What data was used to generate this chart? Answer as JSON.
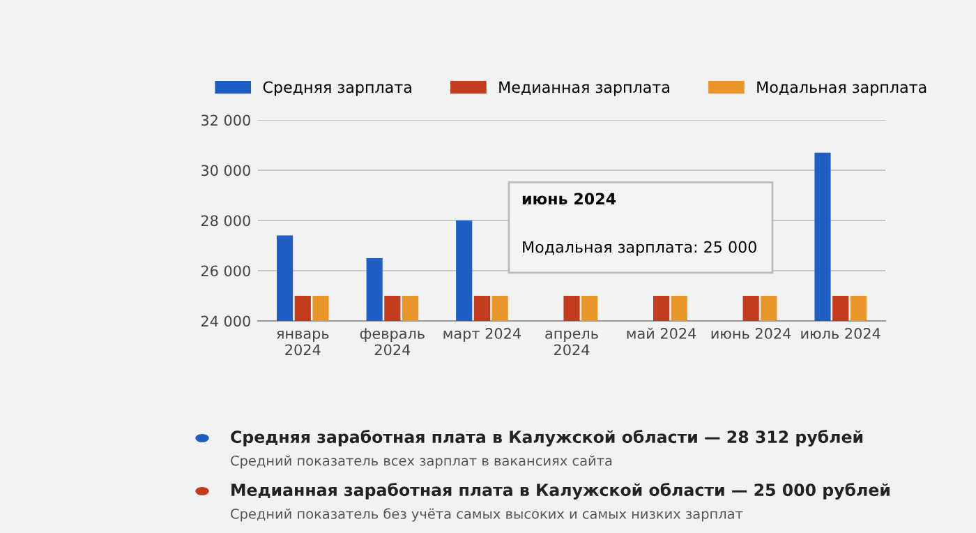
{
  "chart_data": {
    "type": "bar",
    "categories": [
      "январь\n2024",
      "февраль\n2024",
      "март 2024",
      "апрель\n2024",
      "май 2024",
      "июнь 2024",
      "июль 2024"
    ],
    "series": [
      {
        "name": "Средняя зарплата",
        "color": "#1f5fc4",
        "values": [
          27400,
          26500,
          28000,
          null,
          null,
          null,
          30700
        ]
      },
      {
        "name": "Медианная зарплата",
        "color": "#c43c1e",
        "values": [
          25000,
          25000,
          25000,
          25000,
          25000,
          25000,
          25000
        ]
      },
      {
        "name": "Модальная зарплата",
        "color": "#e8962a",
        "values": [
          25000,
          25000,
          25000,
          25000,
          25000,
          25000,
          25000
        ]
      }
    ],
    "ylim": [
      24000,
      32000
    ],
    "yticks": [
      {
        "value": 24000,
        "label": "24 000"
      },
      {
        "value": 26000,
        "label": "26 000"
      },
      {
        "value": 28000,
        "label": "28 000"
      },
      {
        "value": 30000,
        "label": "30 000"
      },
      {
        "value": 32000,
        "label": "32 000"
      }
    ],
    "grid": "y",
    "legend": "top",
    "annotations": [
      "июнь 2024",
      "Модальная зарплата: 25 000",
      "Средняя заработная плата в Калужской области — 28 312 рублей",
      "Средний показатель всех зарплат в вакансиях сайта",
      "Медианная заработная плата в Калужской области — 25 000 рублей",
      "Средний показатель без учёта самых высоких и самых низких зарплат"
    ]
  }
}
